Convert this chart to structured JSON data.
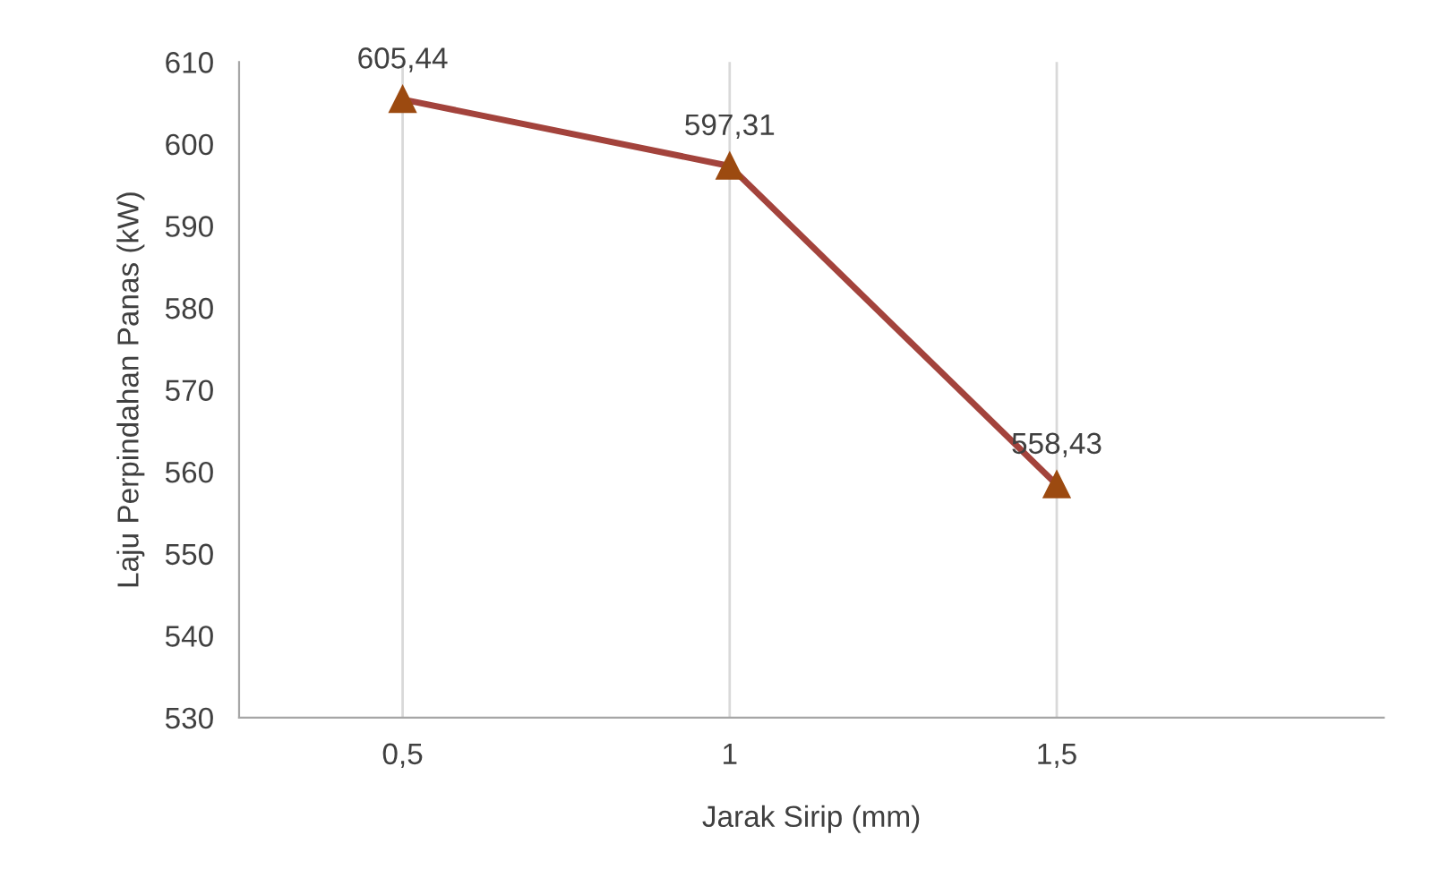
{
  "chart_data": {
    "type": "line",
    "xlabel": "Jarak Sirip (mm)",
    "ylabel": "Laju Perpindahan Panas (kW)",
    "categories": [
      "0,5",
      "1",
      "1,5"
    ],
    "series": [
      {
        "color": "#a3433c",
        "values": [
          605.44,
          597.31,
          558.43
        ],
        "value_labels": [
          "605,44",
          "597,31",
          "558,43"
        ]
      }
    ],
    "ylim": [
      530,
      610
    ],
    "yticks": [
      530,
      540,
      550,
      560,
      570,
      580,
      590,
      600,
      610
    ],
    "grid": "x",
    "marker": "triangle",
    "line_style": "solid",
    "legend": false
  }
}
